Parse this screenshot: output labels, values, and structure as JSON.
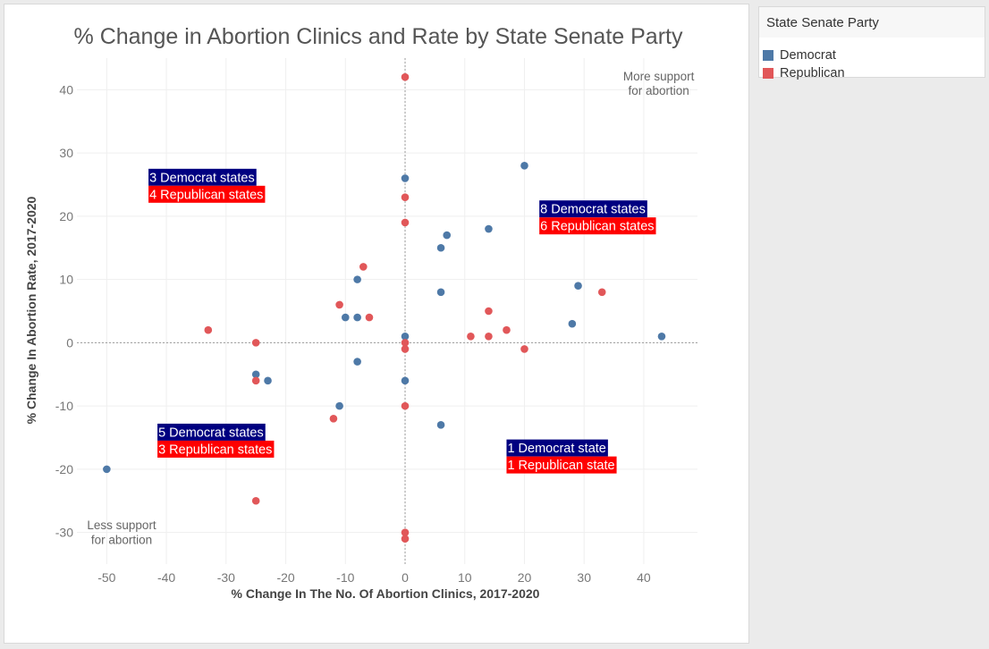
{
  "chart_data": {
    "type": "scatter",
    "title": "% Change in Abortion Clinics and Rate by State Senate Party",
    "xlabel": "% Change In The No. Of Abortion Clinics, 2017-2020",
    "ylabel": "% Change In Abortion Rate, 2017-2020",
    "xlim": [
      -55,
      49
    ],
    "ylim": [
      -35,
      45
    ],
    "x_ticks": [
      -50,
      -40,
      -30,
      -20,
      -10,
      0,
      10,
      20,
      30,
      40
    ],
    "y_ticks": [
      -30,
      -20,
      -10,
      0,
      10,
      20,
      30,
      40
    ],
    "x_tick_labels": [
      "-50",
      "-40",
      "-30",
      "-20",
      "-10",
      "0",
      "10",
      "20",
      "30",
      "40"
    ],
    "y_tick_labels": [
      "-30",
      "-20",
      "-10",
      "0",
      "10",
      "20",
      "30",
      "40"
    ],
    "grid": true,
    "reference_lines": {
      "x": 0,
      "y": 0
    },
    "legend": {
      "title": "State Senate  Party",
      "placement": "right",
      "entries": [
        "Democrat",
        "Republican"
      ]
    },
    "series": [
      {
        "name": "Democrat",
        "color": "#4e79a7",
        "points": [
          {
            "x": -50,
            "y": -20
          },
          {
            "x": -25,
            "y": -5
          },
          {
            "x": -23,
            "y": -6
          },
          {
            "x": -11,
            "y": -10
          },
          {
            "x": -10,
            "y": 4
          },
          {
            "x": -8,
            "y": 4
          },
          {
            "x": -8,
            "y": 10
          },
          {
            "x": -8,
            "y": -3
          },
          {
            "x": 0,
            "y": 26
          },
          {
            "x": 0,
            "y": 1
          },
          {
            "x": 0,
            "y": -6
          },
          {
            "x": 6,
            "y": 15
          },
          {
            "x": 7,
            "y": 17
          },
          {
            "x": 6,
            "y": 8
          },
          {
            "x": 6,
            "y": -13
          },
          {
            "x": 14,
            "y": 18
          },
          {
            "x": 20,
            "y": 28
          },
          {
            "x": 29,
            "y": 9
          },
          {
            "x": 28,
            "y": 3
          },
          {
            "x": 43,
            "y": 1
          }
        ]
      },
      {
        "name": "Republican",
        "color": "#e15759",
        "points": [
          {
            "x": -33,
            "y": 2
          },
          {
            "x": -25,
            "y": 0
          },
          {
            "x": -25,
            "y": -6
          },
          {
            "x": -25,
            "y": -25
          },
          {
            "x": -12,
            "y": -12
          },
          {
            "x": -11,
            "y": 6
          },
          {
            "x": -7,
            "y": 12
          },
          {
            "x": -6,
            "y": 4
          },
          {
            "x": 0,
            "y": 42
          },
          {
            "x": 0,
            "y": 23
          },
          {
            "x": 0,
            "y": 19
          },
          {
            "x": 0,
            "y": 0
          },
          {
            "x": 0,
            "y": -1
          },
          {
            "x": 0,
            "y": -10
          },
          {
            "x": 0,
            "y": -30
          },
          {
            "x": 0,
            "y": -31
          },
          {
            "x": 11,
            "y": 1
          },
          {
            "x": 14,
            "y": 5
          },
          {
            "x": 14,
            "y": 1
          },
          {
            "x": 17,
            "y": 2
          },
          {
            "x": 20,
            "y": -1
          },
          {
            "x": 33,
            "y": 8
          }
        ]
      }
    ],
    "annotations": [
      {
        "text": "More support",
        "x": 42.5,
        "y": 41.5
      },
      {
        "text": "for abortion",
        "x": 42.5,
        "y": 39.2
      },
      {
        "text": "Less support",
        "x": -47.5,
        "y": -29.5
      },
      {
        "text": "for abortion",
        "x": -47.5,
        "y": -31.8
      }
    ],
    "quadrant_labels": [
      {
        "quadrant": "top-left",
        "democrat": "3 Democrat states",
        "republican": "4 Republican states",
        "x": -43,
        "y": 27.5
      },
      {
        "quadrant": "top-right",
        "democrat": "8 Democrat states",
        "republican": "6 Republican states",
        "x": 22.5,
        "y": 22.5
      },
      {
        "quadrant": "bottom-left",
        "democrat": "5 Democrat states",
        "republican": "3 Republican states",
        "x": -41.5,
        "y": -12.8
      },
      {
        "quadrant": "bottom-right",
        "democrat": "1 Democrat state",
        "republican": "1 Republican state",
        "x": 17,
        "y": -15.3
      }
    ],
    "label_colors": {
      "democrat_bg": "#000080",
      "republican_bg": "#ff0000",
      "text": "#ffffff"
    }
  }
}
